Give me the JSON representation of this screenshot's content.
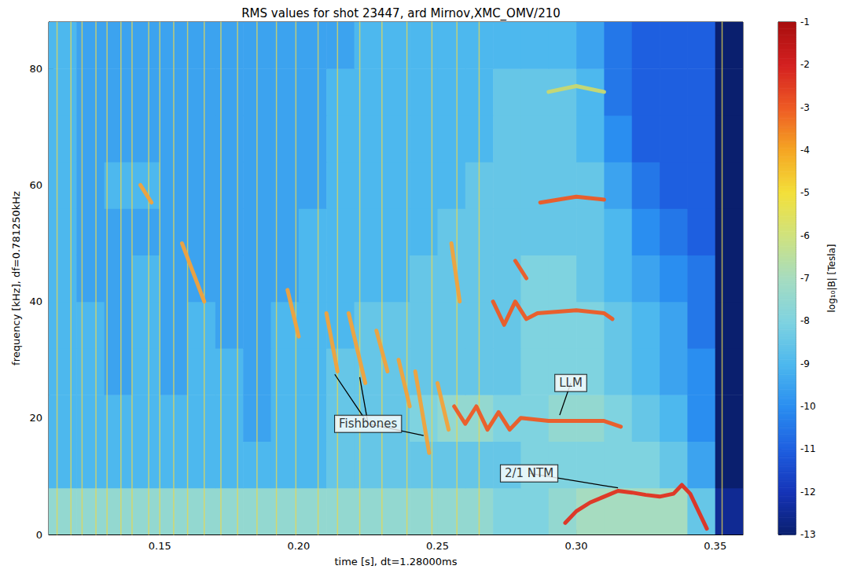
{
  "chart_data": {
    "type": "heatmap",
    "title": "RMS values for shot 23447, ard Mirnov,XMC_OMV/210",
    "x_label": "time [s], dt=1.28000ms",
    "y_label": "frequency [kHz], df=0.781250kHz",
    "xlim": [
      0.11,
      0.36
    ],
    "xticks": [
      0.15,
      {
        "value": 0.2,
        "label": "0.20"
      },
      0.25,
      {
        "value": 0.3,
        "label": "0.30"
      },
      0.35
    ],
    "ylim": [
      0,
      88
    ],
    "yticks": [
      0,
      20,
      40,
      60,
      80
    ],
    "grid": false,
    "heatmap": {
      "time_bins": [
        0.11,
        0.12,
        0.13,
        0.14,
        0.15,
        0.16,
        0.17,
        0.18,
        0.19,
        0.2,
        0.21,
        0.22,
        0.23,
        0.24,
        0.25,
        0.26,
        0.27,
        0.28,
        0.29,
        0.3,
        0.31,
        0.32,
        0.33,
        0.34,
        0.35,
        0.36
      ],
      "freq_bins": [
        0,
        8,
        16,
        24,
        32,
        40,
        48,
        56,
        64,
        72,
        80,
        88
      ],
      "cells": [
        [
          -7.5,
          -7.5,
          -7.5,
          -7.5,
          -7.5,
          -7.5,
          -7.5,
          -7.5,
          -7.5,
          -7.5,
          -7.5,
          -7.5,
          -7.5,
          -7.5,
          -7.5,
          -7.5,
          -8,
          -8,
          -7.5,
          -7,
          -7,
          -7,
          -7,
          -8.5,
          -12.5
        ],
        [
          -9,
          -9,
          -9,
          -9,
          -9,
          -9,
          -9,
          -9,
          -9,
          -9,
          -8.5,
          -8.5,
          -8.5,
          -8.5,
          -8.5,
          -8.5,
          -8.5,
          -8,
          -8,
          -8,
          -8,
          -8,
          -8.5,
          -9.5,
          -13
        ],
        [
          -9,
          -9,
          -9,
          -9,
          -9,
          -9,
          -9,
          -9.5,
          -9,
          -9,
          -8.5,
          -8.5,
          -8.5,
          -8,
          -7.5,
          -7.5,
          -8,
          -8,
          -7.5,
          -7.5,
          -8,
          -8.5,
          -9,
          -10,
          -13
        ],
        [
          -9,
          -9,
          -9.5,
          -9,
          -9.5,
          -9,
          -9,
          -9.5,
          -9,
          -9,
          -8.5,
          -8.5,
          -8.5,
          -8.5,
          -8.5,
          -8.5,
          -8.5,
          -8,
          -8,
          -8,
          -8.5,
          -9,
          -9.5,
          -10,
          -13
        ],
        [
          -9,
          -9,
          -9.5,
          -9,
          -9.5,
          -9,
          -9.5,
          -9.5,
          -9,
          -9,
          -9,
          -8.5,
          -8.5,
          -8.5,
          -8.5,
          -8.5,
          -8.5,
          -8,
          -8,
          -8,
          -8.5,
          -9,
          -9.5,
          -10.5,
          -13
        ],
        [
          -9,
          -9.5,
          -9.5,
          -9,
          -9.5,
          -9.5,
          -9.5,
          -9.5,
          -9.5,
          -9,
          -9,
          -9,
          -9,
          -8.5,
          -8.5,
          -8.5,
          -8.5,
          -8,
          -8,
          -8.5,
          -9,
          -9.5,
          -10,
          -10.5,
          -13
        ],
        [
          -9,
          -9.5,
          -9.5,
          -9.5,
          -9.5,
          -9.5,
          -9.5,
          -9.5,
          -9.5,
          -9,
          -9,
          -9,
          -9,
          -9,
          -8.5,
          -8.5,
          -8.5,
          -8.5,
          -8.5,
          -8.5,
          -9,
          -10,
          -10.5,
          -11,
          -13
        ],
        [
          -9,
          -9.5,
          -9,
          -9,
          -9.5,
          -9.5,
          -9.5,
          -9.5,
          -9.5,
          -9.5,
          -9,
          -9,
          -9,
          -9,
          -9,
          -8.5,
          -8.5,
          -8.5,
          -8.5,
          -8.5,
          -9.5,
          -10.5,
          -11,
          -11,
          -13
        ],
        [
          -9,
          -9.5,
          -9.5,
          -9.5,
          -9.5,
          -9.5,
          -9.5,
          -9.5,
          -9.5,
          -9.5,
          -9,
          -9,
          -9,
          -9,
          -9,
          -9,
          -8.5,
          -8.5,
          -8.5,
          -9,
          -10,
          -11,
          -11,
          -11,
          -13
        ],
        [
          -9,
          -9.5,
          -9.5,
          -9.5,
          -9.5,
          -9.5,
          -9.5,
          -9.5,
          -9.5,
          -9.5,
          -9,
          -9,
          -9,
          -9,
          -9,
          -9,
          -8.5,
          -8.5,
          -8.5,
          -9,
          -10.5,
          -11,
          -11,
          -11,
          -13
        ],
        [
          -9,
          -9.5,
          -9.5,
          -9.5,
          -9.5,
          -9.5,
          -9.5,
          -9.5,
          -9.5,
          -9.5,
          -9.5,
          -9,
          -9,
          -9,
          -9,
          -9,
          -9,
          -9,
          -9,
          -9.5,
          -10.5,
          -11,
          -11,
          -11,
          -13
        ]
      ]
    },
    "colorbar": {
      "label": "log₁₀|B| [Tesla]",
      "range": [
        -13,
        -1
      ],
      "ticks": [
        -13,
        -12,
        -11,
        -10,
        -9,
        -8,
        -7,
        -6,
        -5,
        -4,
        -3,
        -2,
        -1
      ]
    },
    "lines": [
      {
        "color": "#e8d850",
        "line_style": "thin",
        "points": [
          [
            0.113,
            0
          ],
          [
            0.113,
            88
          ],
          null,
          [
            0.118,
            0
          ],
          [
            0.118,
            88
          ],
          null,
          [
            0.122,
            0
          ],
          [
            0.122,
            88
          ],
          null,
          [
            0.127,
            0
          ],
          [
            0.127,
            88
          ],
          null,
          [
            0.131,
            0
          ],
          [
            0.131,
            88
          ],
          null,
          [
            0.136,
            0
          ],
          [
            0.136,
            88
          ],
          null,
          [
            0.14,
            0
          ],
          [
            0.14,
            88
          ],
          null,
          [
            0.146,
            0
          ],
          [
            0.146,
            88
          ],
          null,
          [
            0.15,
            0
          ],
          [
            0.15,
            88
          ],
          null,
          [
            0.155,
            0
          ],
          [
            0.155,
            88
          ],
          null,
          [
            0.16,
            0
          ],
          [
            0.16,
            88
          ],
          null,
          [
            0.166,
            0
          ],
          [
            0.166,
            88
          ],
          null,
          [
            0.172,
            0
          ],
          [
            0.172,
            88
          ],
          null,
          [
            0.178,
            0
          ],
          [
            0.178,
            88
          ],
          null,
          [
            0.185,
            0
          ],
          [
            0.185,
            88
          ],
          null,
          [
            0.192,
            0
          ],
          [
            0.192,
            88
          ],
          null,
          [
            0.199,
            0
          ],
          [
            0.199,
            88
          ],
          null,
          [
            0.207,
            0
          ],
          [
            0.207,
            88
          ],
          null,
          [
            0.214,
            0
          ],
          [
            0.214,
            88
          ],
          null,
          [
            0.222,
            0
          ],
          [
            0.222,
            88
          ],
          null,
          [
            0.23,
            0
          ],
          [
            0.23,
            88
          ],
          null,
          [
            0.239,
            0
          ],
          [
            0.239,
            88
          ],
          null,
          [
            0.248,
            0
          ],
          [
            0.248,
            88
          ],
          null,
          [
            0.257,
            0
          ],
          [
            0.257,
            88
          ],
          null,
          [
            0.265,
            0
          ],
          [
            0.265,
            88
          ],
          null,
          [
            0.3525,
            0
          ],
          [
            0.3525,
            88
          ]
        ]
      },
      {
        "color": "#f2a23a",
        "line_style": "thick",
        "points": [
          [
            0.143,
            60
          ],
          [
            0.147,
            57
          ],
          null,
          [
            0.158,
            50
          ],
          [
            0.166,
            40
          ],
          null,
          [
            0.196,
            42
          ],
          [
            0.2,
            34
          ],
          null,
          [
            0.21,
            38
          ],
          [
            0.214,
            28
          ],
          null,
          [
            0.218,
            38
          ],
          [
            0.224,
            26
          ],
          null,
          [
            0.228,
            35
          ],
          [
            0.232,
            28
          ],
          null,
          [
            0.236,
            30
          ],
          [
            0.24,
            22
          ],
          null,
          [
            0.242,
            28
          ],
          [
            0.247,
            14
          ],
          null,
          [
            0.25,
            26
          ],
          [
            0.254,
            18
          ],
          null,
          [
            0.255,
            50
          ],
          [
            0.258,
            40
          ]
        ]
      },
      {
        "color": "#ee5a24",
        "line_style": "thick",
        "points": [
          [
            0.256,
            22
          ],
          [
            0.26,
            19
          ],
          [
            0.264,
            22
          ],
          [
            0.268,
            18
          ],
          [
            0.272,
            21
          ],
          [
            0.276,
            18
          ],
          [
            0.28,
            20
          ],
          [
            0.29,
            19.5
          ],
          [
            0.3,
            19.5
          ],
          [
            0.31,
            19.5
          ],
          [
            0.316,
            18.5
          ],
          null,
          [
            0.27,
            40
          ],
          [
            0.274,
            36
          ],
          [
            0.278,
            40
          ],
          [
            0.282,
            37
          ],
          [
            0.286,
            38
          ],
          [
            0.3,
            38.5
          ],
          [
            0.31,
            38
          ],
          [
            0.313,
            37
          ],
          null,
          [
            0.278,
            47
          ],
          [
            0.282,
            44
          ],
          null,
          [
            0.287,
            57
          ],
          [
            0.3,
            58
          ],
          [
            0.31,
            57.5
          ]
        ]
      },
      {
        "color": "#c8d870",
        "line_style": "thick",
        "points": [
          [
            0.29,
            76
          ],
          [
            0.3,
            77
          ],
          [
            0.31,
            76
          ]
        ]
      },
      {
        "color": "#e03020",
        "line_style": "thick",
        "points": [
          [
            0.296,
            2
          ],
          [
            0.3,
            4
          ],
          [
            0.305,
            5.5
          ],
          [
            0.31,
            6.5
          ],
          [
            0.315,
            7.5
          ],
          [
            0.32,
            7.2
          ],
          [
            0.325,
            6.8
          ],
          [
            0.33,
            6.5
          ],
          [
            0.335,
            7
          ],
          [
            0.338,
            8.5
          ],
          [
            0.341,
            7
          ],
          [
            0.344,
            4
          ],
          [
            0.347,
            1
          ]
        ]
      }
    ],
    "annotations": [
      {
        "text": "Fishbones",
        "x": 0.225,
        "y": 19,
        "targets": [
          [
            0.213,
            27.5
          ],
          [
            0.222,
            27
          ],
          [
            0.245,
            17
          ]
        ]
      },
      {
        "text": "LLM",
        "x": 0.298,
        "y": 26,
        "targets": [
          [
            0.294,
            20.5
          ]
        ]
      },
      {
        "text": "2/1 NTM",
        "x": 0.283,
        "y": 10.5,
        "targets": [
          [
            0.315,
            8
          ]
        ]
      }
    ]
  }
}
